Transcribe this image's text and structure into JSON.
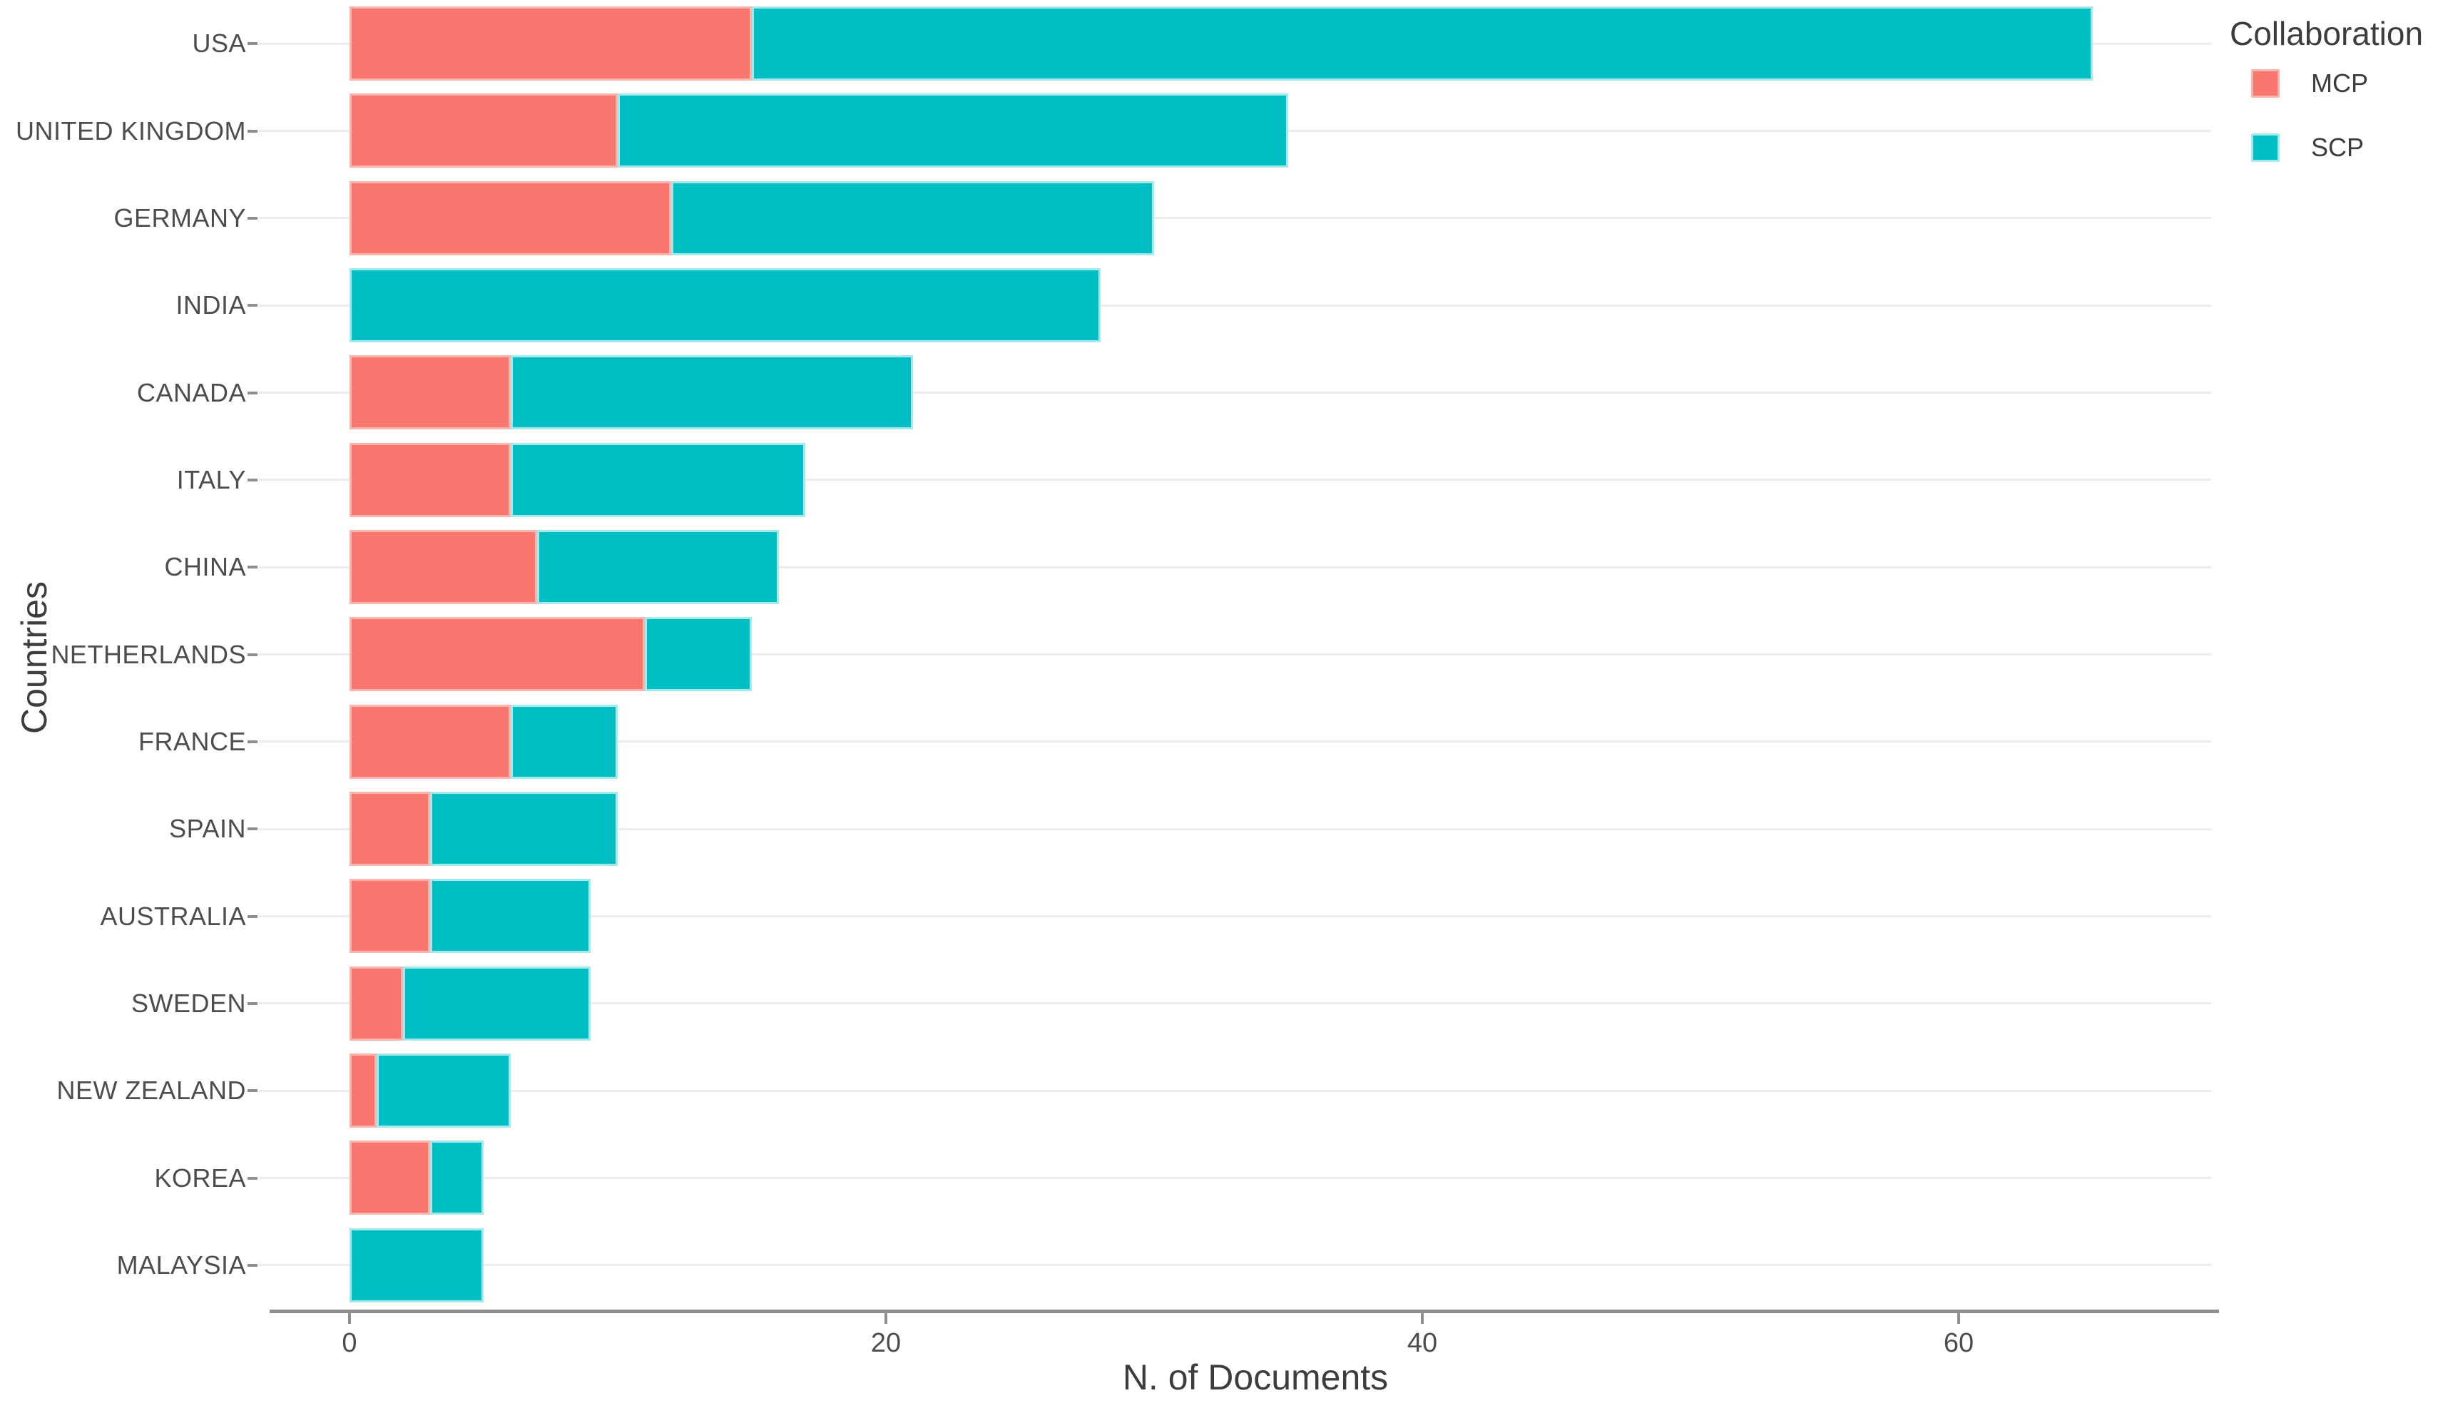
{
  "chart_data": {
    "type": "bar",
    "orientation": "horizontal",
    "stacked": true,
    "title": "",
    "xlabel": "N. of Documents",
    "ylabel": "Countries",
    "legend_title": "Collaboration",
    "legend_position": "top-right",
    "grid": "horizontal",
    "background_color": "#ffffff",
    "xlim": [
      0,
      69
    ],
    "xticks": [
      0,
      20,
      40,
      60
    ],
    "categories": [
      "USA",
      "UNITED KINGDOM",
      "GERMANY",
      "INDIA",
      "CANADA",
      "ITALY",
      "CHINA",
      "NETHERLANDS",
      "FRANCE",
      "SPAIN",
      "AUSTRALIA",
      "SWEDEN",
      "NEW ZEALAND",
      "KOREA",
      "MALAYSIA"
    ],
    "series": [
      {
        "name": "MCP",
        "color": "#F8766D",
        "edge_color": "#fcb4ae",
        "values": [
          15,
          10,
          12,
          0,
          6,
          6,
          7,
          11,
          6,
          3,
          3,
          2,
          1,
          3,
          0
        ]
      },
      {
        "name": "SCP",
        "color": "#00BFC4",
        "edge_color": "#a6e9eb",
        "values": [
          50,
          25,
          18,
          28,
          15,
          11,
          9,
          4,
          4,
          7,
          6,
          7,
          5,
          2,
          5
        ]
      }
    ],
    "stack_totals": [
      65,
      35,
      30,
      28,
      21,
      17,
      16,
      15,
      10,
      10,
      9,
      9,
      6,
      5,
      5
    ]
  },
  "style_colors": {
    "grid_line": "#ededed",
    "axis_line": "#8f8f8f",
    "tick_label": "#4d4d4d",
    "axis_title": "#3d3d3d"
  }
}
